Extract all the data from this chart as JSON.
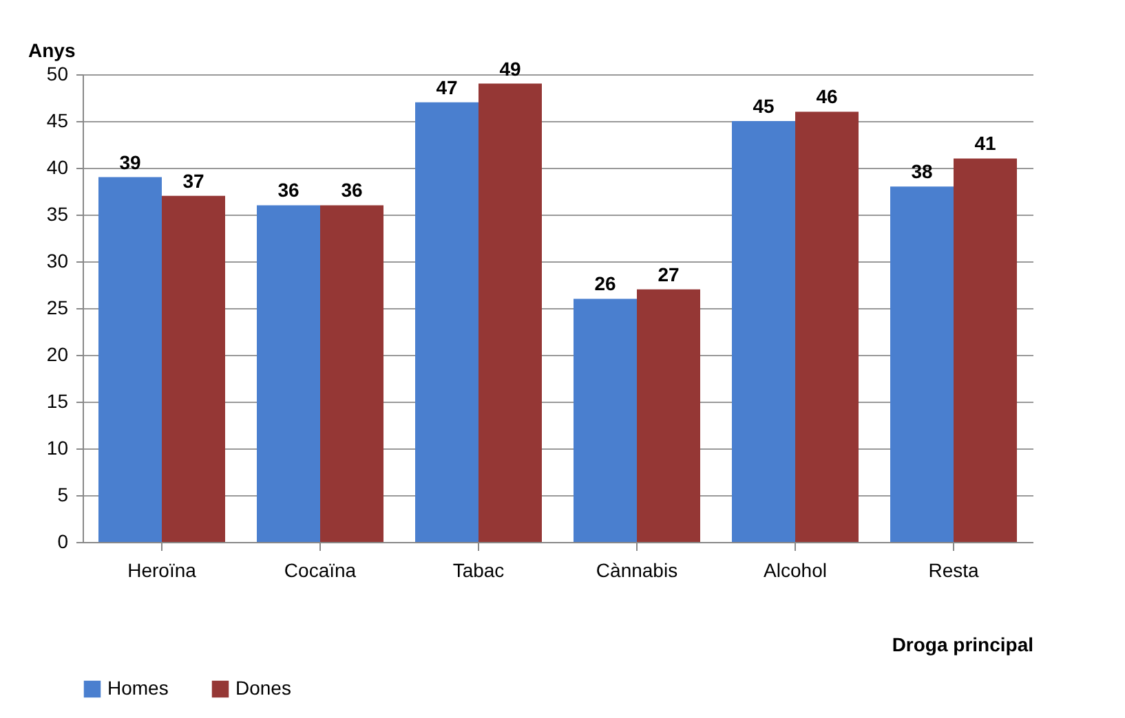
{
  "chart_data": {
    "type": "bar",
    "xlabel": "Droga principal",
    "ylabel": "Anys",
    "categories": [
      "Heroïna",
      "Cocaïna",
      "Tabac",
      "Cànnabis",
      "Alcohol",
      "Resta"
    ],
    "series": [
      {
        "name": "Homes",
        "color": "#4a7fcf",
        "values": [
          39,
          36,
          47,
          26,
          45,
          38
        ]
      },
      {
        "name": "Dones",
        "color": "#953735",
        "values": [
          37,
          36,
          49,
          27,
          46,
          41
        ]
      }
    ],
    "ylim": [
      0,
      50
    ],
    "yticks": [
      0,
      5,
      10,
      15,
      20,
      25,
      30,
      35,
      40,
      45,
      50
    ],
    "grid": "y",
    "legend": "bottom",
    "data_labels": true
  }
}
